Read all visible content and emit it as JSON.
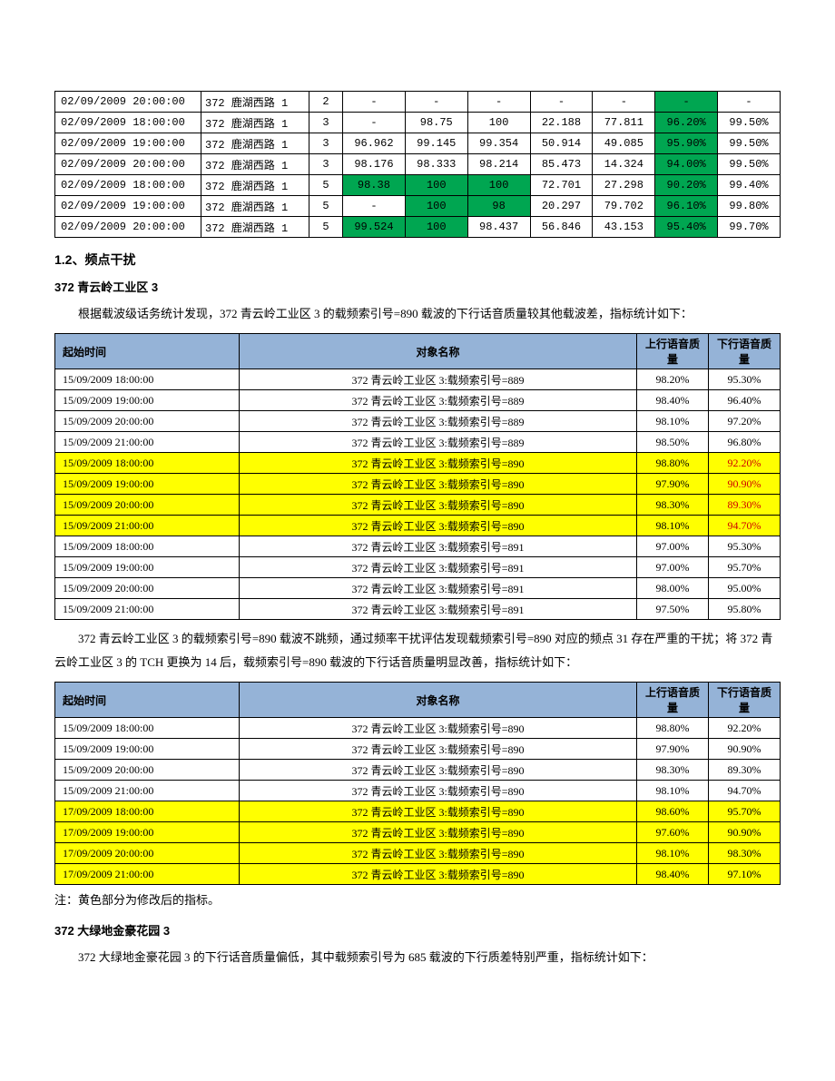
{
  "table1": {
    "rows": [
      {
        "time": "02/09/2009 20:00:00",
        "site": "372 鹿湖西路 1",
        "idx": "2",
        "v": [
          "-",
          "-",
          "-",
          "-",
          "-",
          "-",
          "-"
        ],
        "green": [
          5
        ]
      },
      {
        "time": "02/09/2009 18:00:00",
        "site": "372 鹿湖西路 1",
        "idx": "3",
        "v": [
          "-",
          "98.75",
          "100",
          "22.188",
          "77.811",
          "96.20%",
          "99.50%"
        ],
        "green": [
          5
        ]
      },
      {
        "time": "02/09/2009 19:00:00",
        "site": "372 鹿湖西路 1",
        "idx": "3",
        "v": [
          "96.962",
          "99.145",
          "99.354",
          "50.914",
          "49.085",
          "95.90%",
          "99.50%"
        ],
        "green": [
          5
        ]
      },
      {
        "time": "02/09/2009 20:00:00",
        "site": "372 鹿湖西路 1",
        "idx": "3",
        "v": [
          "98.176",
          "98.333",
          "98.214",
          "85.473",
          "14.324",
          "94.00%",
          "99.50%"
        ],
        "green": [
          5
        ]
      },
      {
        "time": "02/09/2009 18:00:00",
        "site": "372 鹿湖西路 1",
        "idx": "5",
        "v": [
          "98.38",
          "100",
          "100",
          "72.701",
          "27.298",
          "90.20%",
          "99.40%"
        ],
        "green": [
          0,
          1,
          2,
          5
        ]
      },
      {
        "time": "02/09/2009 19:00:00",
        "site": "372 鹿湖西路 1",
        "idx": "5",
        "v": [
          "-",
          "100",
          "98",
          "20.297",
          "79.702",
          "96.10%",
          "99.80%"
        ],
        "green": [
          1,
          2,
          5
        ]
      },
      {
        "time": "02/09/2009 20:00:00",
        "site": "372 鹿湖西路 1",
        "idx": "5",
        "v": [
          "99.524",
          "100",
          "98.437",
          "56.846",
          "43.153",
          "95.40%",
          "99.70%"
        ],
        "green": [
          0,
          1,
          5
        ]
      }
    ]
  },
  "section12": {
    "heading": "1.2、频点干扰",
    "sub1": "372 青云岭工业区 3",
    "para1": "根据载波级话务统计发现，372 青云岭工业区 3 的载频索引号=890 载波的下行话音质量较其他载波差，指标统计如下：",
    "table2_headers": [
      "起始时间",
      "对象名称",
      "上行语音质量",
      "下行语音质量"
    ],
    "table2_rows": [
      {
        "t": "15/09/2009 18:00:00",
        "o": "372 青云岭工业区 3:载频索引号=889",
        "u": "98.20%",
        "d": "95.30%"
      },
      {
        "t": "15/09/2009 19:00:00",
        "o": "372 青云岭工业区 3:载频索引号=889",
        "u": "98.40%",
        "d": "96.40%"
      },
      {
        "t": "15/09/2009 20:00:00",
        "o": "372 青云岭工业区 3:载频索引号=889",
        "u": "98.10%",
        "d": "97.20%"
      },
      {
        "t": "15/09/2009 21:00:00",
        "o": "372 青云岭工业区 3:载频索引号=889",
        "u": "98.50%",
        "d": "96.80%"
      },
      {
        "t": "15/09/2009 18:00:00",
        "o": "372 青云岭工业区 3:载频索引号=890",
        "u": "98.80%",
        "d": "92.20%",
        "y": true,
        "red": true
      },
      {
        "t": "15/09/2009 19:00:00",
        "o": "372 青云岭工业区 3:载频索引号=890",
        "u": "97.90%",
        "d": "90.90%",
        "y": true,
        "red": true
      },
      {
        "t": "15/09/2009 20:00:00",
        "o": "372 青云岭工业区 3:载频索引号=890",
        "u": "98.30%",
        "d": "89.30%",
        "y": true,
        "red": true
      },
      {
        "t": "15/09/2009 21:00:00",
        "o": "372 青云岭工业区 3:载频索引号=890",
        "u": "98.10%",
        "d": "94.70%",
        "y": true,
        "red": true
      },
      {
        "t": "15/09/2009 18:00:00",
        "o": "372 青云岭工业区 3:载频索引号=891",
        "u": "97.00%",
        "d": "95.30%"
      },
      {
        "t": "15/09/2009 19:00:00",
        "o": "372 青云岭工业区 3:载频索引号=891",
        "u": "97.00%",
        "d": "95.70%"
      },
      {
        "t": "15/09/2009 20:00:00",
        "o": "372 青云岭工业区 3:载频索引号=891",
        "u": "98.00%",
        "d": "95.00%"
      },
      {
        "t": "15/09/2009 21:00:00",
        "o": "372 青云岭工业区 3:载频索引号=891",
        "u": "97.50%",
        "d": "95.80%"
      }
    ],
    "para2": "372 青云岭工业区 3 的载频索引号=890 载波不跳频，通过频率干扰评估发现载频索引号=890 对应的频点 31 存在严重的干扰；将 372 青云岭工业区 3 的 TCH 更换为 14 后，载频索引号=890 载波的下行话音质量明显改善，指标统计如下：",
    "table3_rows": [
      {
        "t": "15/09/2009 18:00:00",
        "o": "372 青云岭工业区 3:载频索引号=890",
        "u": "98.80%",
        "d": "92.20%"
      },
      {
        "t": "15/09/2009 19:00:00",
        "o": "372 青云岭工业区 3:载频索引号=890",
        "u": "97.90%",
        "d": "90.90%"
      },
      {
        "t": "15/09/2009 20:00:00",
        "o": "372 青云岭工业区 3:载频索引号=890",
        "u": "98.30%",
        "d": "89.30%"
      },
      {
        "t": "15/09/2009 21:00:00",
        "o": "372 青云岭工业区 3:载频索引号=890",
        "u": "98.10%",
        "d": "94.70%"
      },
      {
        "t": "17/09/2009 18:00:00",
        "o": "372 青云岭工业区 3:载频索引号=890",
        "u": "98.60%",
        "d": "95.70%",
        "y": true
      },
      {
        "t": "17/09/2009 19:00:00",
        "o": "372 青云岭工业区 3:载频索引号=890",
        "u": "97.60%",
        "d": "90.90%",
        "y": true
      },
      {
        "t": "17/09/2009 20:00:00",
        "o": "372 青云岭工业区 3:载频索引号=890",
        "u": "98.10%",
        "d": "98.30%",
        "y": true
      },
      {
        "t": "17/09/2009 21:00:00",
        "o": "372 青云岭工业区 3:载频索引号=890",
        "u": "98.40%",
        "d": "97.10%",
        "y": true
      }
    ],
    "note": "注：黄色部分为修改后的指标。",
    "sub2": "372 大绿地金豪花园 3",
    "para3": "372 大绿地金豪花园 3 的下行话音质量偏低，其中载频索引号为 685 载波的下行质差特别严重，指标统计如下："
  }
}
